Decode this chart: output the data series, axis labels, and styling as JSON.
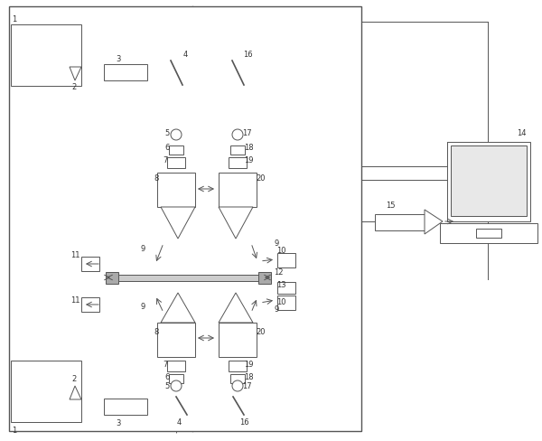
{
  "fig_width": 6.0,
  "fig_height": 4.89,
  "dpi": 100,
  "bg": "#ffffff",
  "lc": "#555555",
  "lw": 0.7,
  "fs": 6.0,
  "fc": "#333333"
}
